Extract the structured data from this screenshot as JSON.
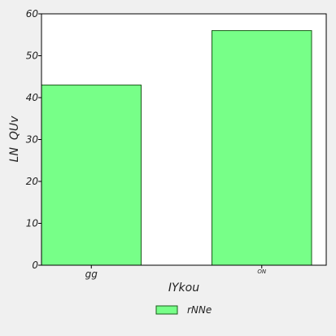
{
  "chart_data": {
    "type": "bar",
    "categories": [
      "gg",
      "ON"
    ],
    "series": [
      {
        "name": "rNNe",
        "values": [
          43,
          56
        ]
      }
    ],
    "xlabel": "IYkou",
    "ylabel": "LN  QUv",
    "ylim": [
      0,
      60
    ],
    "yticks": [
      0,
      10,
      20,
      30,
      40,
      50,
      60
    ],
    "grid": false,
    "legend": "bottom-center",
    "colors": {
      "bar": "#77ff88",
      "edge": "#1a5a1a",
      "background": "#f0f0f0",
      "plot_background": "#ffffff"
    }
  }
}
